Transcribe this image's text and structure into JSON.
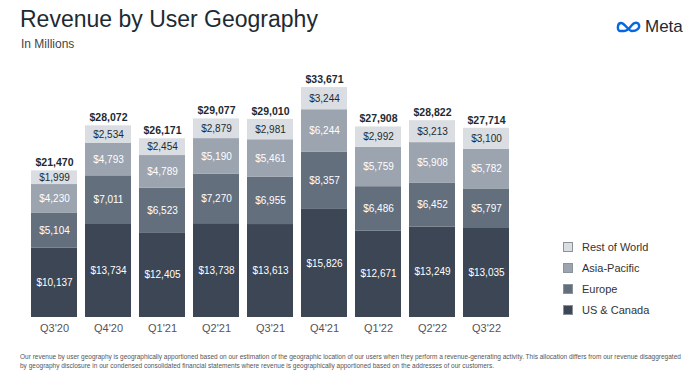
{
  "chart_data": {
    "type": "bar",
    "stacked": true,
    "title": "Revenue by User Geography",
    "subtitle": "In Millions",
    "logo": "Meta",
    "footnote": "Our revenue by user geography is geographically apportioned based on our estimation of the geographic location of our users when they perform a revenue-generating activity. This allocation differs from our revenue disaggregated by geography disclosure in our condensed consolidated financial statements where revenue is geographically apportioned based on the addresses of our customers.",
    "categories": [
      "Q3'20",
      "Q4'20",
      "Q1'21",
      "Q2'21",
      "Q3'21",
      "Q4'21",
      "Q1'22",
      "Q2'22",
      "Q3'22"
    ],
    "series": [
      {
        "name": "US & Canada",
        "color": "#3c4654",
        "values": [
          10137,
          13734,
          12405,
          13738,
          13613,
          15826,
          12671,
          13249,
          13035
        ],
        "value_labels": [
          "$10,137",
          "$13,734",
          "$12,405",
          "$13,738",
          "$13,613",
          "$15,826",
          "$12,671",
          "$13,249",
          "$13,035"
        ]
      },
      {
        "name": "Europe",
        "color": "#646f7d",
        "values": [
          5104,
          7011,
          6523,
          7270,
          6955,
          8357,
          6486,
          6452,
          5797
        ],
        "value_labels": [
          "$5,104",
          "$7,011",
          "$6,523",
          "$7,270",
          "$6,955",
          "$8,357",
          "$6,486",
          "$6,452",
          "$5,797"
        ]
      },
      {
        "name": "Asia-Pacific",
        "color": "#9ba4af",
        "values": [
          4230,
          4793,
          4789,
          5190,
          5461,
          6244,
          5759,
          5908,
          5782
        ],
        "value_labels": [
          "$4,230",
          "$4,793",
          "$4,789",
          "$5,190",
          "$5,461",
          "$6,244",
          "$5,759",
          "$5,908",
          "$5,782"
        ]
      },
      {
        "name": "Rest of World",
        "color": "#dadee2",
        "values": [
          1999,
          2534,
          2454,
          2879,
          2981,
          3244,
          2992,
          3213,
          3100
        ],
        "value_labels": [
          "$1,999",
          "$2,534",
          "$2,454",
          "$2,879",
          "$2,981",
          "$3,244",
          "$2,992",
          "$3,213",
          "$3,100"
        ]
      }
    ],
    "totals": [
      21470,
      28072,
      26171,
      29077,
      29010,
      33671,
      27908,
      28822,
      27714
    ],
    "total_labels": [
      "$21,470",
      "$28,072",
      "$26,171",
      "$29,077",
      "$29,010",
      "$33,671",
      "$27,908",
      "$28,822",
      "$27,714"
    ],
    "ylim": [
      0,
      35000
    ],
    "data_labels": true,
    "tick_labels": "x",
    "legend": "right"
  }
}
